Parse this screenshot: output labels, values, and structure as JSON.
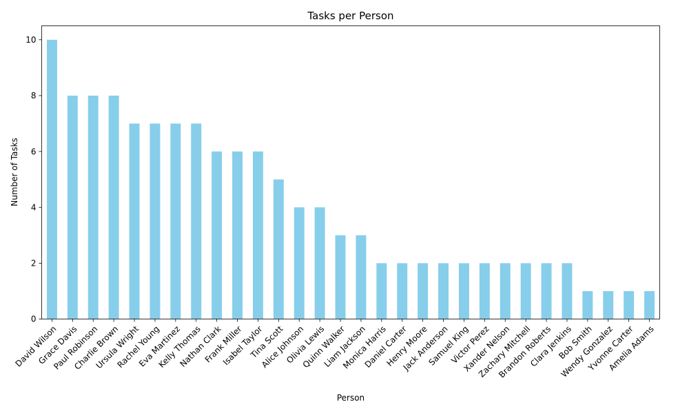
{
  "chart_data": {
    "type": "bar",
    "title": "Tasks per Person",
    "xlabel": "Person",
    "ylabel": "Number of Tasks",
    "ylim": [
      0,
      10.5
    ],
    "yticks": [
      0,
      2,
      4,
      6,
      8,
      10
    ],
    "grid": false,
    "categories": [
      "David Wilson",
      "Grace Davis",
      "Paul Robinson",
      "Charlie Brown",
      "Ursula Wright",
      "Rachel Young",
      "Eva Martinez",
      "Kelly Thomas",
      "Nathan Clark",
      "Frank Miller",
      "Isabel Taylor",
      "Tina Scott",
      "Alice Johnson",
      "Olivia Lewis",
      "Quinn Walker",
      "Liam Jackson",
      "Monica Harris",
      "Daniel Carter",
      "Henry Moore",
      "Jack Anderson",
      "Samuel King",
      "Victor Perez",
      "Xander Nelson",
      "Zachary Mitchell",
      "Brandon Roberts",
      "Clara Jenkins",
      "Bob Smith",
      "Wendy Gonzalez",
      "Yvonne Carter",
      "Amelia Adams"
    ],
    "values": [
      10,
      8,
      8,
      8,
      7,
      7,
      7,
      7,
      6,
      6,
      6,
      5,
      4,
      4,
      3,
      3,
      2,
      2,
      2,
      2,
      2,
      2,
      2,
      2,
      2,
      2,
      1,
      1,
      1,
      1
    ],
    "bar_color": "#87CEEB"
  }
}
